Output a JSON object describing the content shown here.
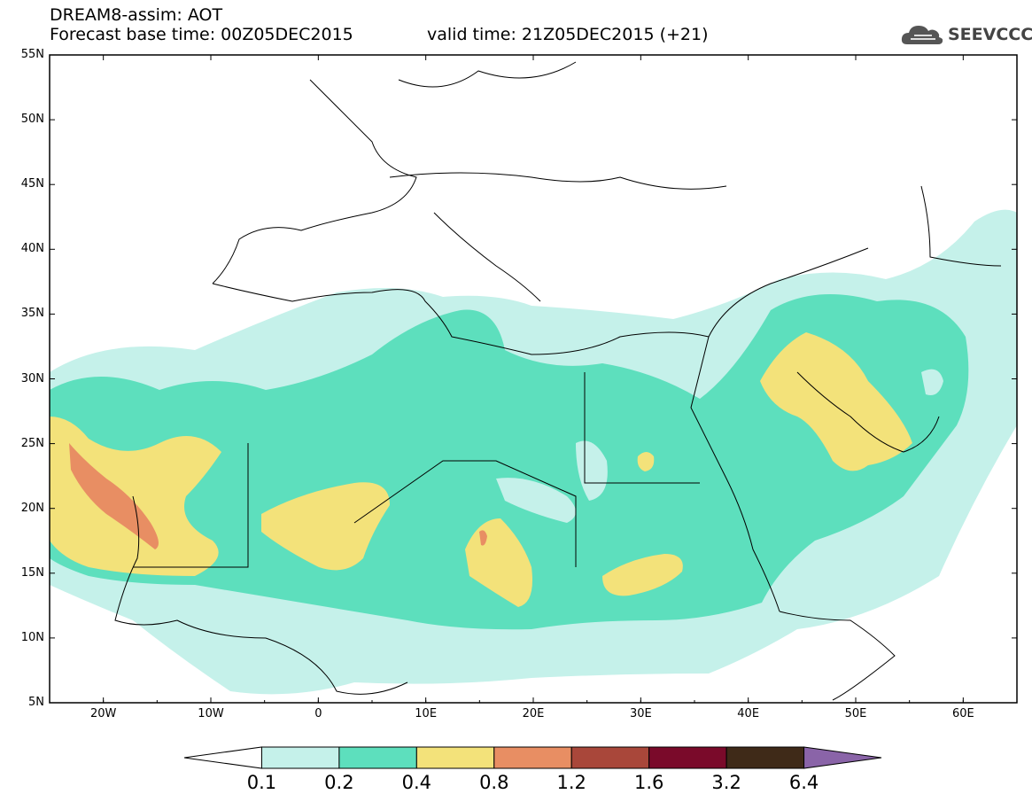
{
  "header": {
    "model_line": "DREAM8-assim: AOT",
    "base_time": "Forecast base time: 00Z05DEC2015",
    "valid_time": "valid time: 21Z05DEC2015 (+21)"
  },
  "logo": {
    "text": "SEEVCCC",
    "icon": "cloud-icon"
  },
  "map": {
    "lat_range": [
      5,
      55
    ],
    "lon_range": [
      -25,
      65
    ],
    "lat_labels": [
      "55N",
      "50N",
      "45N",
      "40N",
      "35N",
      "30N",
      "25N",
      "20N",
      "15N",
      "10N",
      "5N"
    ],
    "lon_labels": [
      "20W",
      "10W",
      "0",
      "10E",
      "20E",
      "30E",
      "40E",
      "50E",
      "60E"
    ]
  },
  "colorbar": {
    "labels": [
      "0.1",
      "0.2",
      "0.4",
      "0.8",
      "1.2",
      "1.6",
      "3.2",
      "6.4"
    ],
    "colors": [
      "#ffffff",
      "#c5f1ea",
      "#5ddfbd",
      "#f3e27a",
      "#e88e63",
      "#a9473a",
      "#7a0a2a",
      "#3f2a18",
      "#8a64a8"
    ]
  }
}
